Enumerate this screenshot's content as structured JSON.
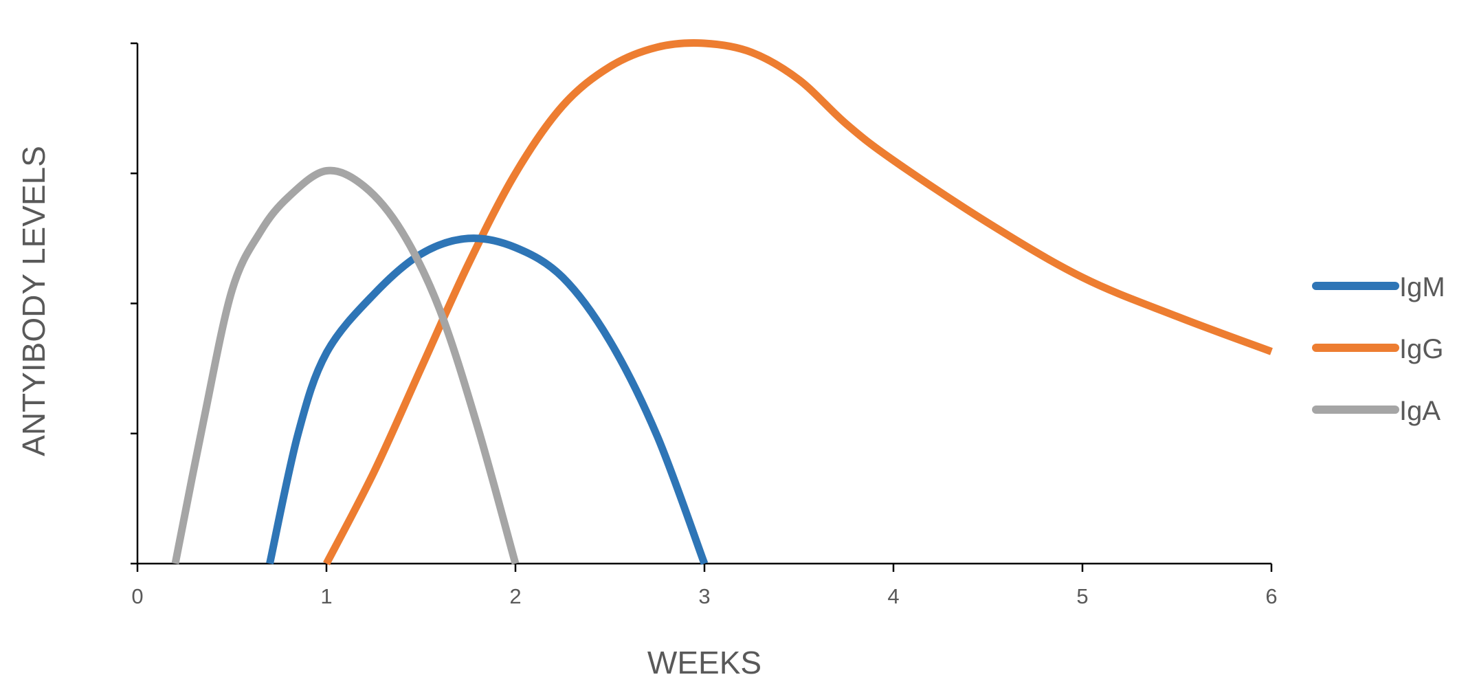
{
  "chart_data": {
    "type": "line",
    "xlabel": "WEEKS",
    "ylabel": "ANTYIBODY LEVELS",
    "xlim": [
      0,
      6
    ],
    "ylim": [
      0,
      4
    ],
    "x_ticks": [
      0,
      1,
      2,
      3,
      4,
      5,
      6
    ],
    "y_tick_values": [
      0,
      1,
      2,
      3,
      4
    ],
    "y_tick_labels_shown": false,
    "grid": false,
    "legend_position": "right",
    "series": [
      {
        "name": "IgM",
        "color": "#2E75B6",
        "x": [
          0.7,
          0.85,
          1.0,
          1.25,
          1.5,
          1.75,
          2.0,
          2.25,
          2.5,
          2.75,
          3.0
        ],
        "y": [
          0.0,
          1.0,
          1.62,
          2.07,
          2.38,
          2.5,
          2.43,
          2.2,
          1.71,
          0.98,
          0.0
        ]
      },
      {
        "name": "IgG",
        "color": "#ED7D31",
        "x": [
          1.0,
          1.25,
          1.5,
          1.75,
          2.0,
          2.25,
          2.5,
          2.75,
          3.0,
          3.25,
          3.5,
          3.75,
          4.0,
          4.5,
          5.0,
          5.5,
          6.0
        ],
        "y": [
          0.0,
          0.7,
          1.5,
          2.3,
          3.0,
          3.52,
          3.82,
          3.97,
          4.0,
          3.93,
          3.72,
          3.38,
          3.1,
          2.62,
          2.2,
          1.9,
          1.63
        ]
      },
      {
        "name": "IgA",
        "color": "#A5A5A5",
        "x": [
          0.2,
          0.35,
          0.5,
          0.65,
          0.8,
          1.0,
          1.2,
          1.4,
          1.6,
          1.8,
          2.0
        ],
        "y": [
          0.0,
          1.1,
          2.1,
          2.55,
          2.82,
          3.02,
          2.9,
          2.55,
          1.95,
          1.05,
          0.0
        ]
      }
    ]
  }
}
